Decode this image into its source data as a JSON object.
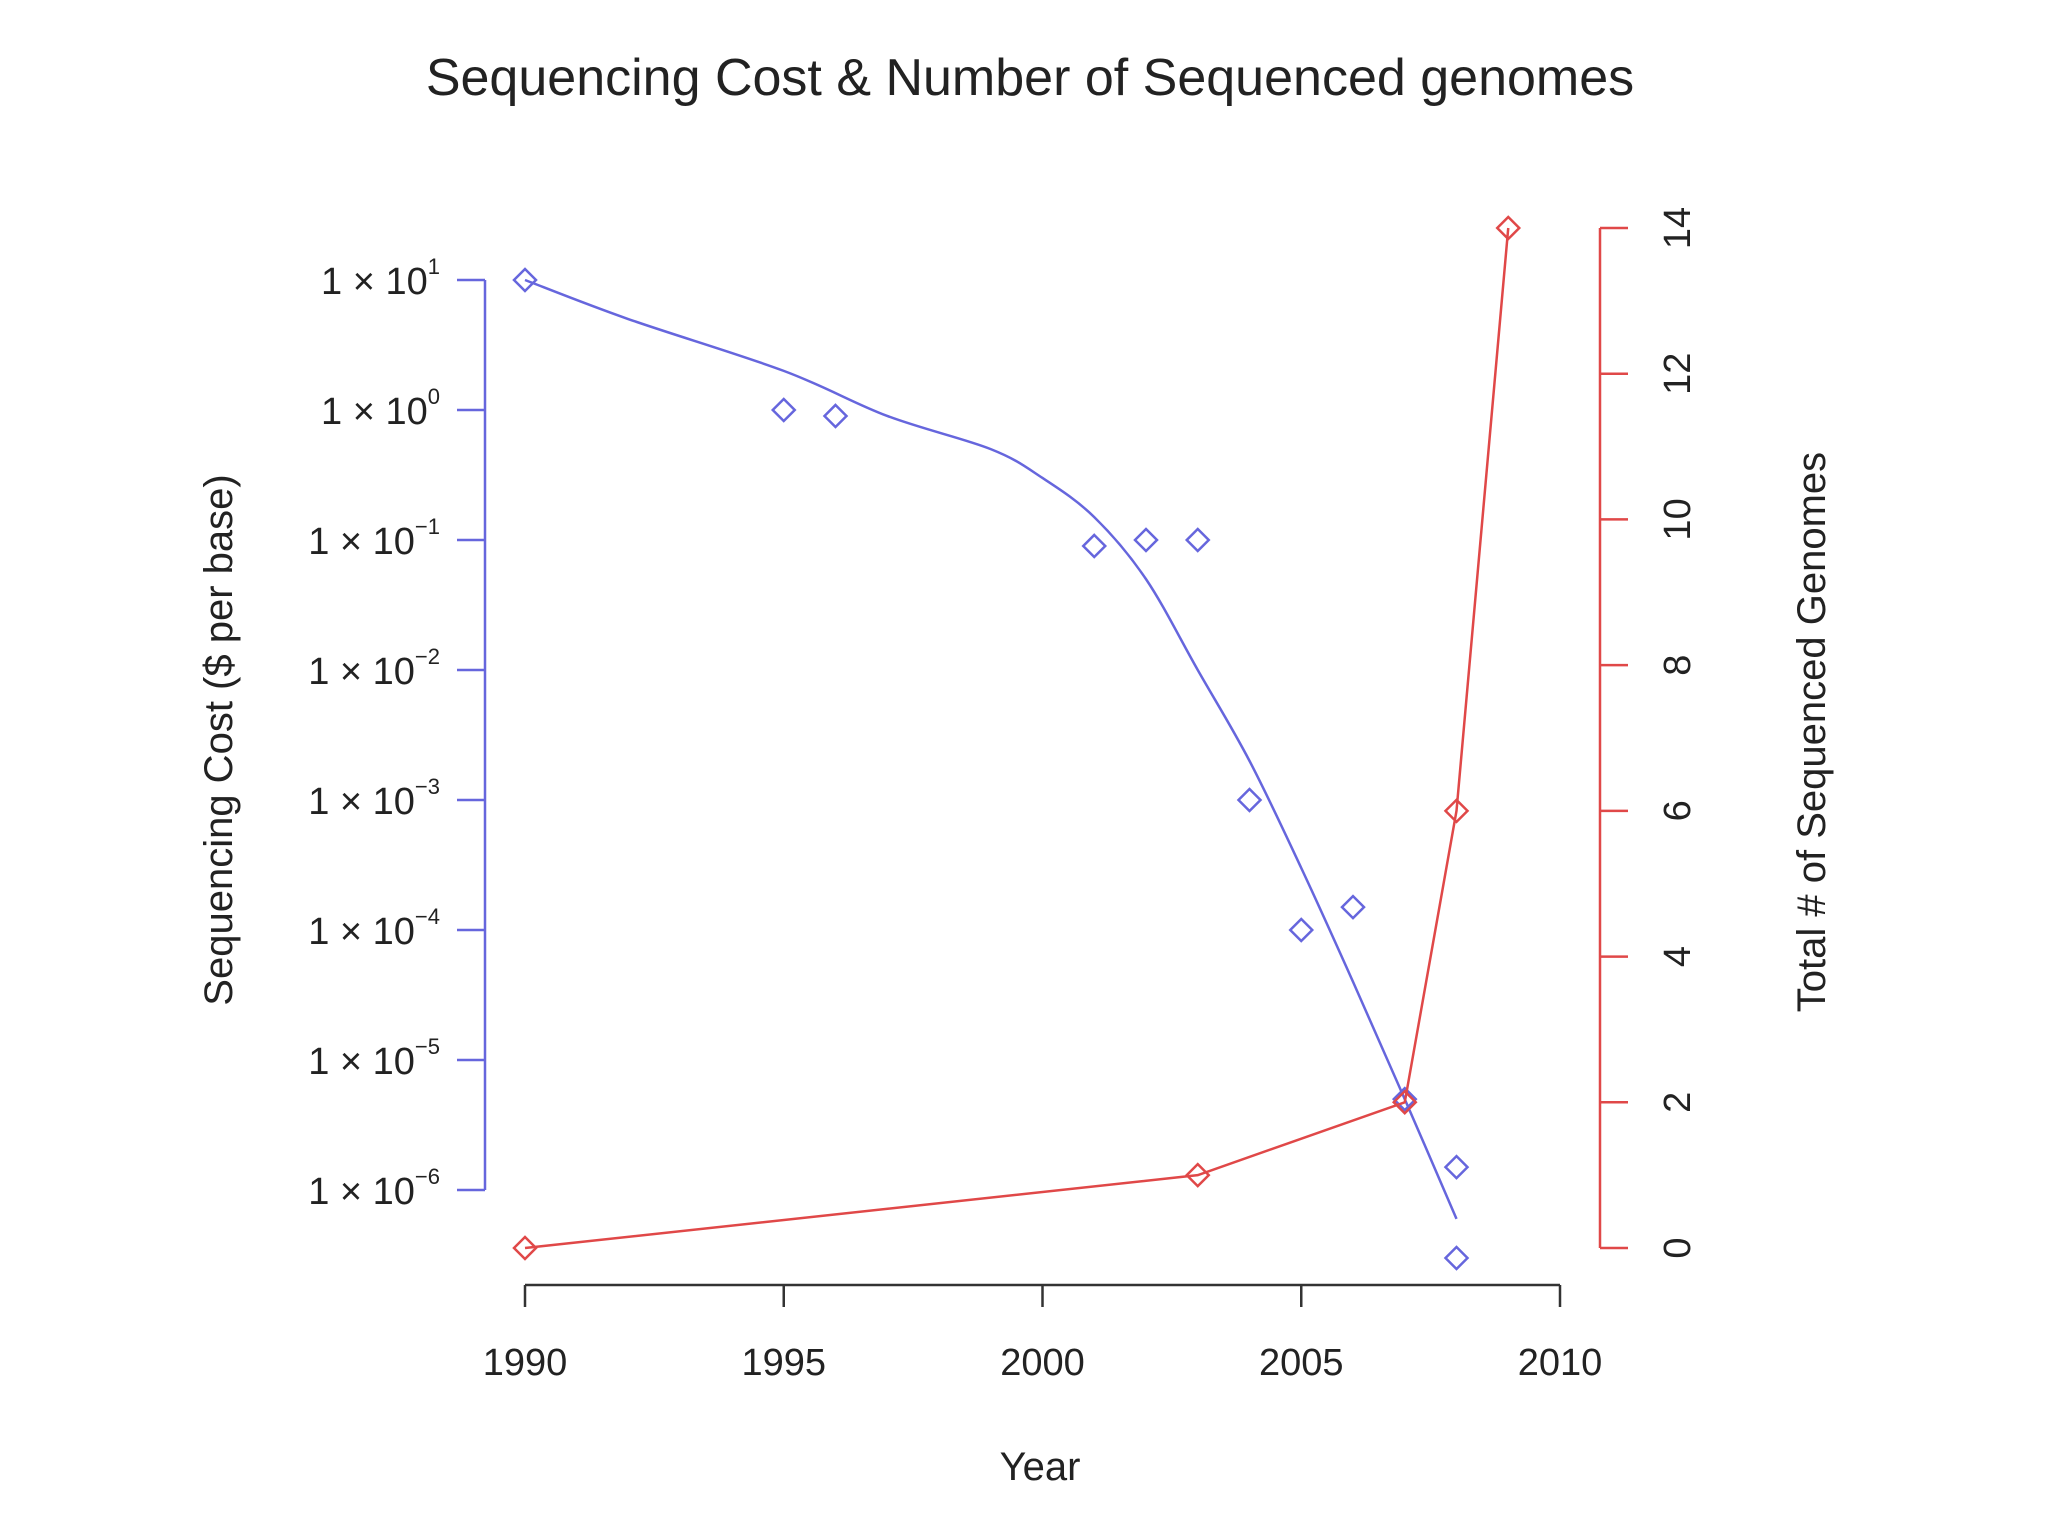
{
  "chart_data": {
    "type": "line",
    "title": "Sequencing Cost & Number of Sequenced genomes",
    "xlabel": "Year",
    "xlim": [
      1990,
      2010
    ],
    "x_ticks": [
      {
        "value": 1990,
        "label": "1990"
      },
      {
        "value": 1995,
        "label": "1995"
      },
      {
        "value": 2000,
        "label": "2000"
      },
      {
        "value": 2005,
        "label": "2005"
      },
      {
        "value": 2010,
        "label": "2010"
      }
    ],
    "y_left": {
      "label": "Sequencing Cost ($ per base)",
      "scale": "log",
      "color": "#6666dd",
      "ticks": [
        {
          "value": 10,
          "mantissa": "1 × 10",
          "exp": "1"
        },
        {
          "value": 1,
          "mantissa": "1 × 10",
          "exp": "0"
        },
        {
          "value": 0.1,
          "mantissa": "1 × 10",
          "exp": "−1"
        },
        {
          "value": 0.01,
          "mantissa": "1 × 10",
          "exp": "−2"
        },
        {
          "value": 0.001,
          "mantissa": "1 × 10",
          "exp": "−3"
        },
        {
          "value": 0.0001,
          "mantissa": "1 × 10",
          "exp": "−4"
        },
        {
          "value": 1e-05,
          "mantissa": "1 × 10",
          "exp": "−5"
        },
        {
          "value": 1e-06,
          "mantissa": "1 × 10",
          "exp": "−6"
        }
      ]
    },
    "y_right": {
      "label": "Total # of Sequenced Genomes",
      "scale": "linear",
      "color": "#e04848",
      "ylim": [
        0,
        14
      ],
      "ticks": [
        {
          "value": 0,
          "label": "0"
        },
        {
          "value": 2,
          "label": "2"
        },
        {
          "value": 4,
          "label": "4"
        },
        {
          "value": 6,
          "label": "6"
        },
        {
          "value": 8,
          "label": "8"
        },
        {
          "value": 10,
          "label": "10"
        },
        {
          "value": 12,
          "label": "12"
        },
        {
          "value": 14,
          "label": "14"
        }
      ]
    },
    "series": [
      {
        "axis": "left",
        "color": "#6666dd",
        "marker": "diamond",
        "points": [
          {
            "x": 1990,
            "y": 10
          },
          {
            "x": 1995,
            "y": 1
          },
          {
            "x": 1996,
            "y": 0.9
          },
          {
            "x": 2001,
            "y": 0.09
          },
          {
            "x": 2002,
            "y": 0.1
          },
          {
            "x": 2003,
            "y": 0.1
          },
          {
            "x": 2004,
            "y": 0.001
          },
          {
            "x": 2005,
            "y": 0.0001
          },
          {
            "x": 2006,
            "y": 0.00015
          },
          {
            "x": 2007,
            "y": 5e-06
          },
          {
            "x": 2008,
            "y": 1.5e-06
          },
          {
            "x": 2008,
            "y": 3e-07
          }
        ]
      },
      {
        "axis": "left",
        "color": "#6666dd",
        "marker": "none",
        "points": [
          {
            "x": 1990,
            "y": 10
          },
          {
            "x": 1992,
            "y": 5
          },
          {
            "x": 1995,
            "y": 2
          },
          {
            "x": 1997,
            "y": 0.9
          },
          {
            "x": 1999,
            "y": 0.5
          },
          {
            "x": 2000,
            "y": 0.3
          },
          {
            "x": 2001,
            "y": 0.15
          },
          {
            "x": 2002,
            "y": 0.05
          },
          {
            "x": 2003,
            "y": 0.01
          },
          {
            "x": 2004,
            "y": 0.002
          },
          {
            "x": 2005,
            "y": 0.0003
          },
          {
            "x": 2006,
            "y": 4e-05
          },
          {
            "x": 2007,
            "y": 5e-06
          },
          {
            "x": 2008,
            "y": 6e-07
          }
        ]
      },
      {
        "axis": "right",
        "color": "#e04848",
        "marker": "diamond",
        "points": [
          {
            "x": 1990,
            "y": 0
          },
          {
            "x": 2003,
            "y": 1
          },
          {
            "x": 2007,
            "y": 2
          },
          {
            "x": 2008,
            "y": 6
          },
          {
            "x": 2009,
            "y": 14
          }
        ]
      }
    ]
  }
}
